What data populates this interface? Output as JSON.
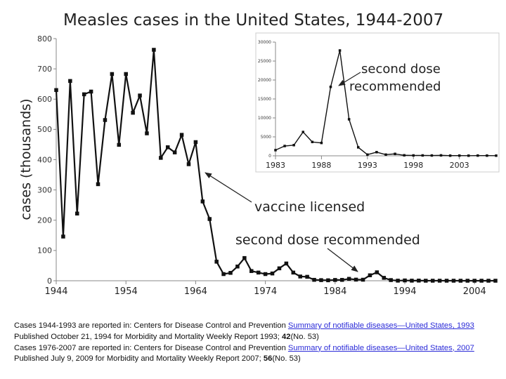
{
  "chart_data": [
    {
      "type": "line",
      "title": "Measles cases in the United States, 1944-2007",
      "ylabel": "cases (thousands)",
      "xlabel": "",
      "ylim": [
        0,
        800
      ],
      "xlim": [
        1944,
        2007
      ],
      "xticks": [
        1944,
        1954,
        1964,
        1974,
        1984,
        1994,
        2004
      ],
      "yticks": [
        0,
        100,
        200,
        300,
        400,
        500,
        600,
        700,
        800
      ],
      "grid": false,
      "series": [
        {
          "name": "Measles cases (thousands)",
          "x": [
            1944,
            1945,
            1946,
            1947,
            1948,
            1949,
            1950,
            1951,
            1952,
            1953,
            1954,
            1955,
            1956,
            1957,
            1958,
            1959,
            1960,
            1961,
            1962,
            1963,
            1964,
            1965,
            1966,
            1967,
            1968,
            1969,
            1970,
            1971,
            1972,
            1973,
            1974,
            1975,
            1976,
            1977,
            1978,
            1979,
            1980,
            1981,
            1982,
            1983,
            1984,
            1985,
            1986,
            1987,
            1988,
            1989,
            1990,
            1991,
            1992,
            1993,
            1994,
            1995,
            1996,
            1997,
            1998,
            1999,
            2000,
            2001,
            2002,
            2003,
            2004,
            2005,
            2006,
            2007
          ],
          "values": [
            630,
            146,
            660,
            222,
            616,
            625,
            319,
            531,
            683,
            449,
            683,
            555,
            612,
            487,
            763,
            406,
            441,
            424,
            482,
            385,
            458,
            262,
            204,
            63,
            22,
            26,
            47,
            75,
            32,
            27,
            22,
            24,
            41,
            57,
            27,
            14,
            13,
            3,
            2,
            1.5,
            2.6,
            2.8,
            6.3,
            3.7,
            3.4,
            18,
            27.8,
            9.6,
            2.2,
            0.3,
            1,
            0.3,
            0.5,
            0.1,
            0.1,
            0.1,
            0.1,
            0.1,
            0.04,
            0.06,
            0.04,
            0.07,
            0.06,
            0.04
          ]
        }
      ],
      "annotations": [
        {
          "text": "vaccine licensed",
          "x": 1963,
          "y": 360
        },
        {
          "text": "second dose recommended",
          "x": 1989,
          "y": 28
        }
      ]
    },
    {
      "type": "line",
      "title": "",
      "inset": true,
      "ylim": [
        0,
        30000
      ],
      "xlim": [
        1983,
        2007
      ],
      "xticks": [
        1983,
        1988,
        1993,
        1998,
        2003
      ],
      "yticks": [
        0,
        5000,
        10000,
        15000,
        20000,
        25000,
        30000
      ],
      "series": [
        {
          "name": "Measles cases",
          "x": [
            1983,
            1984,
            1985,
            1986,
            1987,
            1988,
            1989,
            1990,
            1991,
            1992,
            1993,
            1994,
            1995,
            1996,
            1997,
            1998,
            1999,
            2000,
            2001,
            2002,
            2003,
            2004,
            2005,
            2006,
            2007
          ],
          "values": [
            1497,
            2587,
            2822,
            6282,
            3655,
            3396,
            18193,
            27786,
            9643,
            2237,
            312,
            963,
            309,
            508,
            138,
            100,
            100,
            86,
            116,
            44,
            56,
            37,
            66,
            55,
            43
          ]
        }
      ],
      "annotations": [
        {
          "text": "second dose recommended",
          "x": 1989,
          "y": 17000
        }
      ]
    }
  ],
  "caption": {
    "line1_text": "Cases 1944-1993 are reported in: Centers for Disease Control and Prevention ",
    "line1_link": "Summary of notifiable diseases—United States, 1993",
    "line1_rest": " Published October 21, 1994 for Morbidity and Mortality Weekly Report 1993; ",
    "line1_vol": "42",
    "line1_end": "(No. 53)",
    "line2_text": "Cases 1976-2007 are reported in: Centers for Disease Control and Prevention ",
    "line2_link": "Summary of notifiable diseases—United States, 2007",
    "line2_rest": " Published July 9, 2009 for Morbidity and Mortality Weekly Report 2007; ",
    "line2_vol": "56",
    "line2_end": "(No. 53)"
  }
}
